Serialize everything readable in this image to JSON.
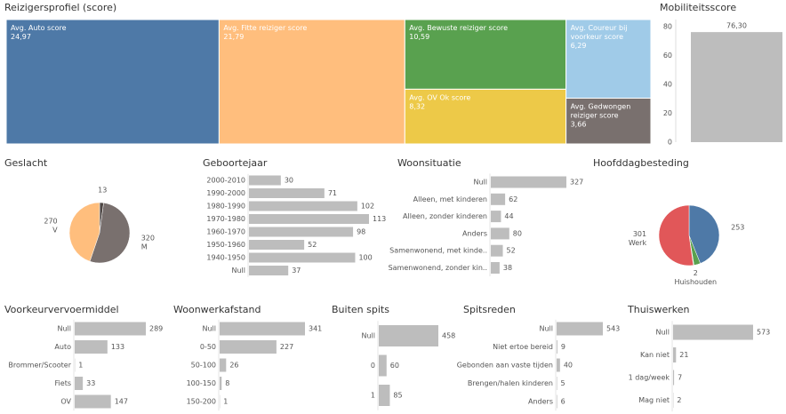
{
  "chart_data": [
    {
      "type": "treemap",
      "title": "Reizigersprofiel (score)",
      "categories": [
        "Avg. Auto score",
        "Avg. Fitte reiziger score",
        "Avg. Bewuste reiziger score",
        "Avg. OV Ok score",
        "Avg. Coureur bij voorkeur score",
        "Avg. Gedwongen reiziger score"
      ],
      "values": [
        24.97,
        21.79,
        10.59,
        8.32,
        6.29,
        3.66
      ],
      "value_labels": [
        "24,97",
        "21,79",
        "10,59",
        "8,32",
        "6,29",
        "3,66"
      ],
      "colors": [
        "#4e79a7",
        "#ffbe7d",
        "#59a14f",
        "#edc948",
        "#a0cbe8",
        "#79706e"
      ]
    },
    {
      "type": "bar",
      "title": "Mobiliteitsscore",
      "categories": [
        null
      ],
      "values": [
        76.3
      ],
      "value_labels": [
        "76,30"
      ],
      "ylim": [
        0,
        85
      ],
      "yticks": [
        0,
        20,
        40,
        60,
        80
      ],
      "color": "#bdbdbd"
    },
    {
      "type": "pie",
      "title": "Geslacht",
      "categories": [
        null,
        "M",
        "V"
      ],
      "values": [
        13,
        320,
        270
      ],
      "colors": [
        "#4f4744",
        "#79706e",
        "#ffbe7d"
      ]
    },
    {
      "type": "hbar",
      "title": "Geboortejaar",
      "categories": [
        "2000-2010",
        "1990-2000",
        "1980-1990",
        "1970-1980",
        "1960-1970",
        "1950-1960",
        "1940-1950",
        "Null"
      ],
      "values": [
        30,
        71,
        102,
        113,
        98,
        52,
        100,
        37
      ],
      "color": "#bdbdbd"
    },
    {
      "type": "hbar",
      "title": "Woonsituatie",
      "categories": [
        "Null",
        "Alleen, met kinderen",
        "Alleen, zonder kinderen",
        "Anders",
        "Samenwonend, met kinde..",
        "Samenwonend, zonder kin.."
      ],
      "values": [
        327,
        62,
        44,
        80,
        52,
        38
      ],
      "color": "#bdbdbd"
    },
    {
      "type": "pie",
      "title": "Hoofddagbesteding",
      "categories": [
        null,
        null,
        "Huishouden",
        "Werk"
      ],
      "values": [
        253,
        20,
        2,
        301
      ],
      "value_labels": [
        "253",
        null,
        "2",
        "301"
      ],
      "colors": [
        "#4e79a7",
        "#59a14f",
        "#8cd17d",
        "#e15759"
      ]
    },
    {
      "type": "hbar",
      "title": "Voorkeurvervoermiddel",
      "categories": [
        "Null",
        "Auto",
        "Brommer/Scooter",
        "Fiets",
        "OV"
      ],
      "values": [
        289,
        133,
        1,
        33,
        147
      ],
      "color": "#bdbdbd"
    },
    {
      "type": "hbar",
      "title": "Woonwerkafstand",
      "categories": [
        "Null",
        "0-50",
        "50-100",
        "100-150",
        "150-200"
      ],
      "values": [
        341,
        227,
        26,
        8,
        1
      ],
      "color": "#bdbdbd"
    },
    {
      "type": "hbar",
      "title": "Buiten spits",
      "categories": [
        "Null",
        "0",
        "1"
      ],
      "values": [
        458,
        60,
        85
      ],
      "color": "#bdbdbd"
    },
    {
      "type": "hbar",
      "title": "Spitsreden",
      "categories": [
        "Null",
        "Niet ertoe bereid",
        "Gebonden aan vaste tijden",
        "Brengen/halen kinderen",
        "Anders"
      ],
      "values": [
        543,
        9,
        40,
        5,
        6
      ],
      "color": "#bdbdbd"
    },
    {
      "type": "hbar",
      "title": "Thuiswerken",
      "categories": [
        "Null",
        "Kan niet",
        "1 dag/week",
        "Mag niet"
      ],
      "values": [
        573,
        21,
        7,
        2
      ],
      "color": "#bdbdbd"
    }
  ]
}
